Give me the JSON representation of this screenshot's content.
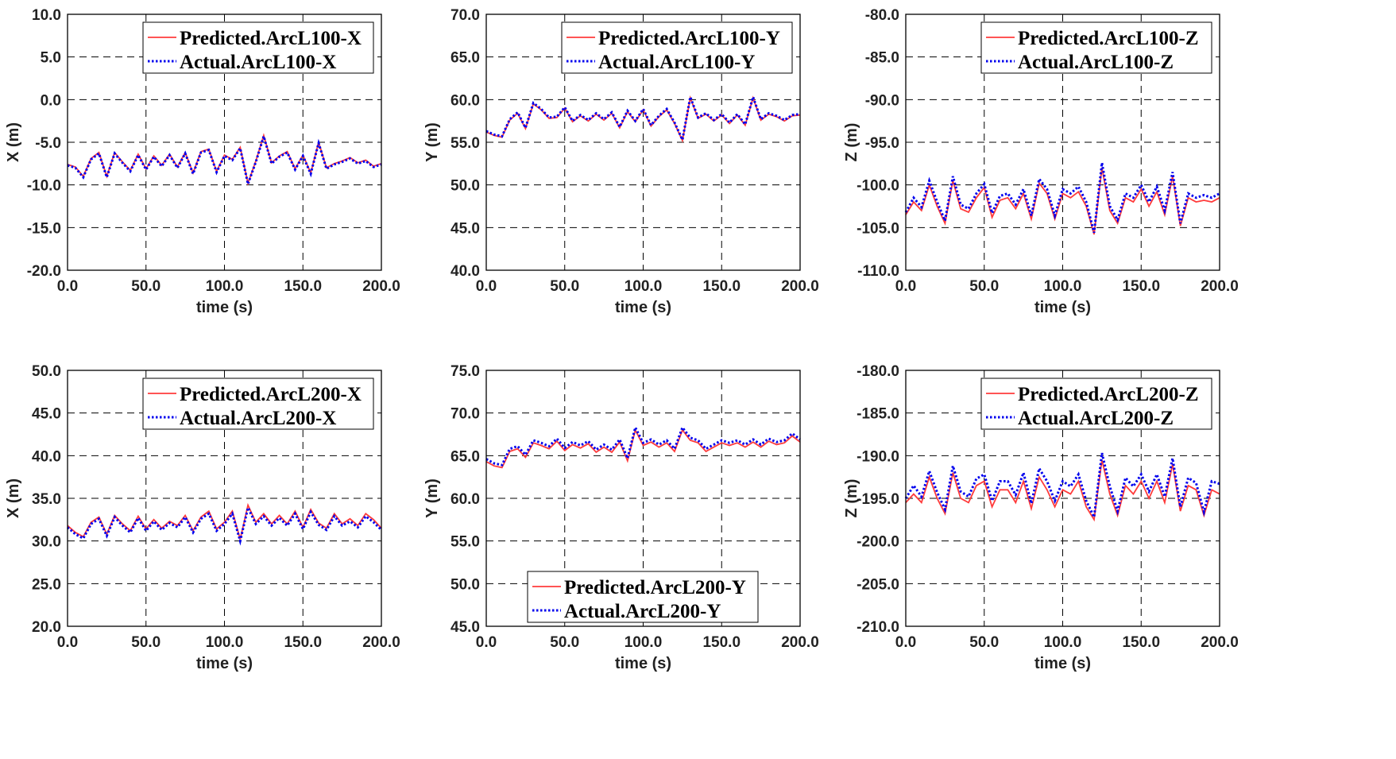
{
  "colors": {
    "predicted": "#ff3b3b",
    "actual": "#0000ee",
    "grid": "#000000"
  },
  "chart_data": [
    {
      "type": "line",
      "title": "",
      "xlabel": "time (s)",
      "ylabel": "X (m)",
      "xlim": [
        0,
        200
      ],
      "ylim": [
        -20,
        10
      ],
      "xticks": [
        "0.0",
        "50.0",
        "100.0",
        "150.0",
        "200.0"
      ],
      "yticks": [
        "-20.0",
        "-15.0",
        "-10.0",
        "-5.0",
        "0.0",
        "5.0",
        "10.0"
      ],
      "legend_position": "top-right",
      "grid": true,
      "x": [
        0,
        5,
        10,
        15,
        20,
        25,
        30,
        35,
        40,
        45,
        50,
        55,
        60,
        65,
        70,
        75,
        80,
        85,
        90,
        95,
        100,
        105,
        110,
        115,
        120,
        125,
        130,
        135,
        140,
        145,
        150,
        155,
        160,
        165,
        170,
        175,
        180,
        185,
        190,
        195,
        200
      ],
      "series": [
        {
          "name": "Predicted.ArcL100-X",
          "style": "solid",
          "values": [
            -7.6,
            -7.9,
            -9.0,
            -6.9,
            -6.2,
            -9.0,
            -6.2,
            -7.3,
            -8.3,
            -6.4,
            -8.1,
            -6.6,
            -7.7,
            -6.4,
            -7.9,
            -6.2,
            -8.6,
            -6.1,
            -5.8,
            -8.4,
            -6.5,
            -7.0,
            -5.6,
            -9.8,
            -7.2,
            -4.2,
            -7.4,
            -6.6,
            -6.1,
            -8.1,
            -6.5,
            -8.6,
            -5.0,
            -8.0,
            -7.5,
            -7.2,
            -6.8,
            -7.4,
            -7.1,
            -7.8,
            -7.5
          ]
        },
        {
          "name": "Actual.ArcL100-X",
          "style": "dotted",
          "values": [
            -7.7,
            -8.0,
            -9.1,
            -7.0,
            -6.3,
            -9.1,
            -6.3,
            -7.4,
            -8.4,
            -6.5,
            -8.2,
            -6.7,
            -7.8,
            -6.5,
            -8.0,
            -6.3,
            -8.7,
            -6.2,
            -5.9,
            -8.5,
            -6.6,
            -7.1,
            -5.7,
            -9.9,
            -7.3,
            -4.3,
            -7.5,
            -6.7,
            -6.2,
            -8.2,
            -6.6,
            -8.7,
            -5.1,
            -8.1,
            -7.6,
            -7.3,
            -6.9,
            -7.5,
            -7.2,
            -7.9,
            -7.6
          ]
        }
      ]
    },
    {
      "type": "line",
      "title": "",
      "xlabel": "time (s)",
      "ylabel": "Y (m)",
      "xlim": [
        0,
        200
      ],
      "ylim": [
        40,
        70
      ],
      "xticks": [
        "0.0",
        "50.0",
        "100.0",
        "150.0",
        "200.0"
      ],
      "yticks": [
        "40.0",
        "45.0",
        "50.0",
        "55.0",
        "60.0",
        "65.0",
        "70.0"
      ],
      "legend_position": "top-right",
      "grid": true,
      "x": [
        0,
        5,
        10,
        15,
        20,
        25,
        30,
        35,
        40,
        45,
        50,
        55,
        60,
        65,
        70,
        75,
        80,
        85,
        90,
        95,
        100,
        105,
        110,
        115,
        120,
        125,
        130,
        135,
        140,
        145,
        150,
        155,
        160,
        165,
        170,
        175,
        180,
        185,
        190,
        195,
        200
      ],
      "series": [
        {
          "name": "Predicted.ArcL100-Y",
          "style": "solid",
          "values": [
            56.2,
            55.8,
            55.6,
            57.6,
            58.4,
            56.6,
            59.5,
            58.8,
            57.8,
            57.9,
            59.0,
            57.4,
            58.1,
            57.5,
            58.3,
            57.6,
            58.4,
            56.7,
            58.6,
            57.4,
            58.8,
            56.9,
            58.0,
            58.8,
            57.2,
            55.2,
            60.2,
            57.8,
            58.3,
            57.5,
            58.2,
            57.2,
            58.2,
            57.0,
            60.2,
            57.6,
            58.3,
            58.0,
            57.5,
            58.1,
            58.2
          ]
        },
        {
          "name": "Actual.ArcL100-Y",
          "style": "dotted",
          "values": [
            56.3,
            55.9,
            55.7,
            57.7,
            58.5,
            56.7,
            59.6,
            58.9,
            57.9,
            58.0,
            59.1,
            57.5,
            58.2,
            57.6,
            58.4,
            57.7,
            58.5,
            56.8,
            58.7,
            57.5,
            58.9,
            57.0,
            58.1,
            58.9,
            57.3,
            55.3,
            60.3,
            57.9,
            58.4,
            57.6,
            58.3,
            57.3,
            58.3,
            57.1,
            60.3,
            57.7,
            58.4,
            58.1,
            57.6,
            58.2,
            58.3
          ]
        }
      ]
    },
    {
      "type": "line",
      "title": "",
      "xlabel": "time (s)",
      "ylabel": "Z (m)",
      "xlim": [
        0,
        200
      ],
      "ylim": [
        -110,
        -80
      ],
      "xticks": [
        "0.0",
        "50.0",
        "100.0",
        "150.0",
        "200.0"
      ],
      "yticks": [
        "-110.0",
        "-105.0",
        "-100.0",
        "-95.0",
        "-90.0",
        "-85.0",
        "-80.0"
      ],
      "legend_position": "top-right",
      "grid": true,
      "x": [
        0,
        5,
        10,
        15,
        20,
        25,
        30,
        35,
        40,
        45,
        50,
        55,
        60,
        65,
        70,
        75,
        80,
        85,
        90,
        95,
        100,
        105,
        110,
        115,
        120,
        125,
        130,
        135,
        140,
        145,
        150,
        155,
        160,
        165,
        170,
        175,
        180,
        185,
        190,
        195,
        200
      ],
      "series": [
        {
          "name": "Predicted.ArcL100-Z",
          "style": "solid",
          "values": [
            -103.5,
            -102.0,
            -103.0,
            -100.0,
            -102.5,
            -104.5,
            -99.5,
            -102.8,
            -103.2,
            -101.5,
            -100.3,
            -103.8,
            -101.8,
            -101.5,
            -102.8,
            -101.0,
            -104.0,
            -99.8,
            -101.0,
            -104.0,
            -101.0,
            -101.5,
            -100.8,
            -102.5,
            -105.8,
            -98.0,
            -103.0,
            -104.5,
            -101.5,
            -102.0,
            -100.5,
            -102.5,
            -100.8,
            -103.5,
            -99.0,
            -104.8,
            -101.5,
            -102.0,
            -101.8,
            -102.0,
            -101.5
          ]
        },
        {
          "name": "Actual.ArcL100-Z",
          "style": "dotted",
          "values": [
            -103.2,
            -101.5,
            -102.6,
            -99.5,
            -102.0,
            -104.2,
            -99.0,
            -102.3,
            -102.8,
            -101.0,
            -99.9,
            -103.3,
            -101.3,
            -101.0,
            -102.3,
            -100.5,
            -103.6,
            -99.3,
            -100.5,
            -103.6,
            -100.5,
            -101.0,
            -100.2,
            -102.0,
            -105.6,
            -97.4,
            -102.5,
            -104.1,
            -101.0,
            -101.5,
            -100.0,
            -102.0,
            -100.2,
            -103.0,
            -98.5,
            -104.5,
            -101.0,
            -101.5,
            -101.2,
            -101.5,
            -101.0
          ]
        }
      ]
    },
    {
      "type": "line",
      "title": "",
      "xlabel": "time (s)",
      "ylabel": "X (m)",
      "xlim": [
        0,
        200
      ],
      "ylim": [
        20,
        50
      ],
      "xticks": [
        "0.0",
        "50.0",
        "100.0",
        "150.0",
        "200.0"
      ],
      "yticks": [
        "20.0",
        "25.0",
        "30.0",
        "35.0",
        "40.0",
        "45.0",
        "50.0"
      ],
      "legend_position": "top-right",
      "grid": true,
      "x": [
        0,
        5,
        10,
        15,
        20,
        25,
        30,
        35,
        40,
        45,
        50,
        55,
        60,
        65,
        70,
        75,
        80,
        85,
        90,
        95,
        100,
        105,
        110,
        115,
        120,
        125,
        130,
        135,
        140,
        145,
        150,
        155,
        160,
        165,
        170,
        175,
        180,
        185,
        190,
        195,
        200
      ],
      "series": [
        {
          "name": "Predicted.ArcL200-X",
          "style": "solid",
          "values": [
            31.8,
            31.0,
            30.5,
            32.2,
            32.8,
            30.8,
            33.0,
            32.0,
            31.2,
            32.9,
            31.4,
            32.5,
            31.5,
            32.3,
            31.8,
            33.0,
            31.2,
            32.8,
            33.5,
            31.4,
            32.2,
            33.5,
            30.2,
            34.2,
            32.2,
            33.2,
            32.0,
            33.0,
            32.0,
            33.5,
            31.6,
            33.7,
            32.1,
            31.5,
            33.2,
            32.0,
            32.6,
            31.8,
            33.2,
            32.5,
            31.5
          ]
        },
        {
          "name": "Actual.ArcL200-X",
          "style": "dotted",
          "values": [
            31.6,
            30.8,
            30.3,
            32.0,
            32.6,
            30.6,
            32.8,
            31.8,
            31.0,
            32.7,
            31.2,
            32.3,
            31.3,
            32.1,
            31.6,
            32.8,
            31.0,
            32.6,
            33.2,
            31.2,
            32.0,
            33.2,
            30.0,
            33.9,
            32.0,
            32.9,
            31.8,
            32.7,
            31.8,
            33.2,
            31.4,
            33.4,
            31.9,
            31.3,
            32.9,
            31.8,
            32.3,
            31.6,
            32.9,
            32.2,
            31.3
          ]
        }
      ]
    },
    {
      "type": "line",
      "title": "",
      "xlabel": "time (s)",
      "ylabel": "Y (m)",
      "xlim": [
        0,
        200
      ],
      "ylim": [
        45,
        75
      ],
      "xticks": [
        "0.0",
        "50.0",
        "100.0",
        "150.0",
        "200.0"
      ],
      "yticks": [
        "45.0",
        "50.0",
        "55.0",
        "60.0",
        "65.0",
        "70.0",
        "75.0"
      ],
      "legend_position": "bottom-center",
      "grid": true,
      "x": [
        0,
        5,
        10,
        15,
        20,
        25,
        30,
        35,
        40,
        45,
        50,
        55,
        60,
        65,
        70,
        75,
        80,
        85,
        90,
        95,
        100,
        105,
        110,
        115,
        120,
        125,
        130,
        135,
        140,
        145,
        150,
        155,
        160,
        165,
        170,
        175,
        180,
        185,
        190,
        195,
        200
      ],
      "series": [
        {
          "name": "Predicted.ArcL200-Y",
          "style": "solid",
          "values": [
            64.3,
            63.8,
            63.6,
            65.5,
            65.8,
            64.8,
            66.5,
            66.2,
            65.8,
            66.7,
            65.6,
            66.3,
            65.9,
            66.4,
            65.4,
            66.0,
            65.4,
            66.6,
            64.4,
            68.0,
            66.2,
            66.6,
            66.0,
            66.5,
            65.5,
            68.0,
            66.8,
            66.5,
            65.5,
            66.0,
            66.5,
            66.2,
            66.5,
            66.0,
            66.6,
            66.0,
            66.7,
            66.3,
            66.5,
            67.3,
            66.6
          ]
        },
        {
          "name": "Actual.ArcL200-Y",
          "style": "dotted",
          "values": [
            64.6,
            64.1,
            63.9,
            65.8,
            66.1,
            65.1,
            66.8,
            66.5,
            66.1,
            67.0,
            65.9,
            66.6,
            66.2,
            66.7,
            65.7,
            66.3,
            65.7,
            66.9,
            64.7,
            68.3,
            66.5,
            66.9,
            66.3,
            66.8,
            65.8,
            68.3,
            67.1,
            66.8,
            65.8,
            66.3,
            66.8,
            66.5,
            66.8,
            66.3,
            66.9,
            66.3,
            67.0,
            66.6,
            66.8,
            67.6,
            66.9
          ]
        }
      ]
    },
    {
      "type": "line",
      "title": "",
      "xlabel": "time (s)",
      "ylabel": "Z (m)",
      "xlim": [
        0,
        200
      ],
      "ylim": [
        -210,
        -180
      ],
      "xticks": [
        "0.0",
        "50.0",
        "100.0",
        "150.0",
        "200.0"
      ],
      "yticks": [
        "-210.0",
        "-205.0",
        "-200.0",
        "-195.0",
        "-190.0",
        "-185.0",
        "-180.0"
      ],
      "legend_position": "top-right",
      "grid": true,
      "x": [
        0,
        5,
        10,
        15,
        20,
        25,
        30,
        35,
        40,
        45,
        50,
        55,
        60,
        65,
        70,
        75,
        80,
        85,
        90,
        95,
        100,
        105,
        110,
        115,
        120,
        125,
        130,
        135,
        140,
        145,
        150,
        155,
        160,
        165,
        170,
        175,
        180,
        185,
        190,
        195,
        200
      ],
      "series": [
        {
          "name": "Predicted.ArcL200-Z",
          "style": "solid",
          "values": [
            -195.5,
            -194.5,
            -195.5,
            -192.5,
            -195.0,
            -196.8,
            -192.0,
            -195.0,
            -195.5,
            -193.5,
            -193.0,
            -196.0,
            -194.0,
            -194.0,
            -195.5,
            -193.0,
            -196.2,
            -192.5,
            -194.0,
            -196.0,
            -194.0,
            -194.5,
            -193.0,
            -196.0,
            -197.5,
            -190.5,
            -194.5,
            -197.0,
            -193.5,
            -194.5,
            -193.0,
            -195.0,
            -193.0,
            -195.5,
            -191.0,
            -196.5,
            -193.5,
            -194.0,
            -197.0,
            -194.0,
            -194.5
          ]
        },
        {
          "name": "Actual.ArcL200-Z",
          "style": "dotted",
          "values": [
            -195.0,
            -193.5,
            -194.8,
            -191.8,
            -194.3,
            -196.3,
            -191.2,
            -194.2,
            -194.8,
            -192.7,
            -192.2,
            -195.3,
            -193.0,
            -193.0,
            -194.6,
            -192.0,
            -195.6,
            -191.5,
            -193.0,
            -195.3,
            -193.0,
            -193.6,
            -192.2,
            -195.3,
            -197.2,
            -189.7,
            -193.6,
            -196.5,
            -192.6,
            -193.6,
            -192.2,
            -194.2,
            -192.2,
            -194.8,
            -190.3,
            -196.0,
            -192.6,
            -193.2,
            -196.6,
            -193.0,
            -193.3
          ]
        }
      ]
    }
  ]
}
